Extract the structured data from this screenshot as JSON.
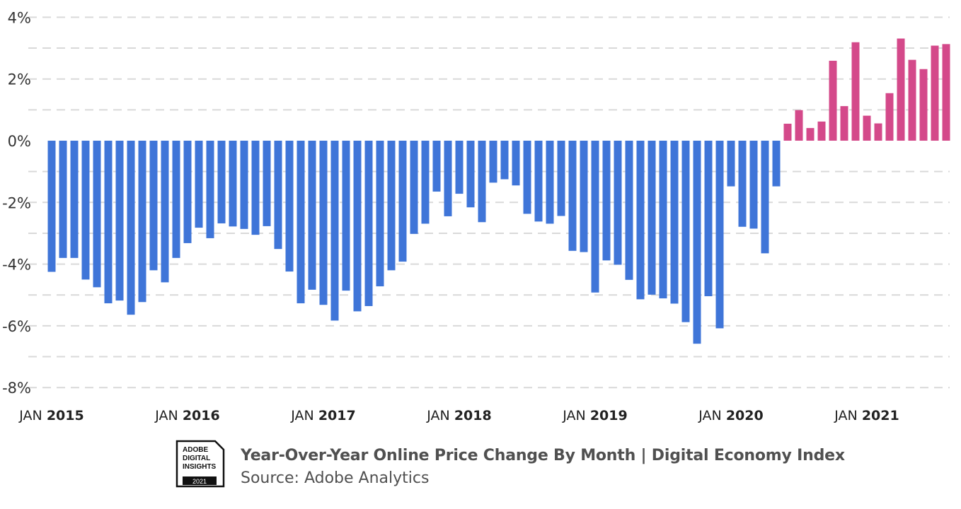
{
  "chart_data": {
    "type": "bar",
    "title": "Year-Over-Year Online Price Change By Month | Digital Economy Index",
    "source": "Source: Adobe Analytics",
    "xlabel": "",
    "ylabel": "",
    "ylim": [
      -8,
      4
    ],
    "y_ticks": [
      "4%",
      "2%",
      "0%",
      "-2%",
      "-4%",
      "-6%",
      "-8%"
    ],
    "y_tick_values": [
      4,
      2,
      0,
      -2,
      -4,
      -6,
      -8
    ],
    "grid": "dashed horizontal lines every 1%",
    "x_ticks": [
      {
        "month": "JAN",
        "year": "2015",
        "index": 0
      },
      {
        "month": "JAN",
        "year": "2016",
        "index": 12
      },
      {
        "month": "JAN",
        "year": "2017",
        "index": 24
      },
      {
        "month": "JAN",
        "year": "2018",
        "index": 36
      },
      {
        "month": "JAN",
        "year": "2019",
        "index": 48
      },
      {
        "month": "JAN",
        "year": "2020",
        "index": 60
      },
      {
        "month": "JAN",
        "year": "2021",
        "index": 72
      }
    ],
    "categories": [
      "2015-01",
      "2015-02",
      "2015-03",
      "2015-04",
      "2015-05",
      "2015-06",
      "2015-07",
      "2015-08",
      "2015-09",
      "2015-10",
      "2015-11",
      "2015-12",
      "2016-01",
      "2016-02",
      "2016-03",
      "2016-04",
      "2016-05",
      "2016-06",
      "2016-07",
      "2016-08",
      "2016-09",
      "2016-10",
      "2016-11",
      "2016-12",
      "2017-01",
      "2017-02",
      "2017-03",
      "2017-04",
      "2017-05",
      "2017-06",
      "2017-07",
      "2017-08",
      "2017-09",
      "2017-10",
      "2017-11",
      "2017-12",
      "2018-01",
      "2018-02",
      "2018-03",
      "2018-04",
      "2018-05",
      "2018-06",
      "2018-07",
      "2018-08",
      "2018-09",
      "2018-10",
      "2018-11",
      "2018-12",
      "2019-01",
      "2019-02",
      "2019-03",
      "2019-04",
      "2019-05",
      "2019-06",
      "2019-07",
      "2019-08",
      "2019-09",
      "2019-10",
      "2019-11",
      "2019-12",
      "2020-01",
      "2020-02",
      "2020-03",
      "2020-04",
      "2020-05",
      "2020-06",
      "2020-07",
      "2020-08",
      "2020-09",
      "2020-10",
      "2020-11",
      "2020-12",
      "2021-01",
      "2021-02",
      "2021-03",
      "2021-04",
      "2021-05",
      "2021-06",
      "2021-07",
      "2021-08"
    ],
    "values": [
      -4.25,
      -3.8,
      -3.8,
      -4.5,
      -4.75,
      -5.27,
      -5.18,
      -5.64,
      -5.23,
      -4.2,
      -4.59,
      -3.8,
      -3.32,
      -2.82,
      -3.16,
      -2.68,
      -2.78,
      -2.86,
      -3.05,
      -2.77,
      -3.51,
      -4.24,
      -5.27,
      -4.83,
      -5.32,
      -5.83,
      -4.86,
      -5.53,
      -5.36,
      -4.72,
      -4.2,
      -3.92,
      -3.02,
      -2.69,
      -1.65,
      -2.45,
      -1.72,
      -2.16,
      -2.64,
      -1.36,
      -1.25,
      -1.45,
      -2.37,
      -2.62,
      -2.69,
      -2.44,
      -3.57,
      -3.61,
      -4.92,
      -3.88,
      -4.02,
      -4.51,
      -5.14,
      -4.99,
      -5.11,
      -5.28,
      -5.88,
      -6.58,
      -5.04,
      -6.08,
      -1.48,
      -2.79,
      -2.85,
      -3.65,
      -1.48,
      0.55,
      0.99,
      0.41,
      0.62,
      2.59,
      1.12,
      3.19,
      0.81,
      0.56,
      1.54,
      3.31,
      2.62,
      2.32,
      3.08,
      3.13
    ],
    "colors": {
      "negative": "#3f75d8",
      "positive": "#d4498a",
      "grid": "#d9d9d9"
    }
  },
  "logo": {
    "lines": [
      "ADOBE",
      "DIGITAL",
      "INSIGHTS"
    ],
    "year": "2021"
  }
}
